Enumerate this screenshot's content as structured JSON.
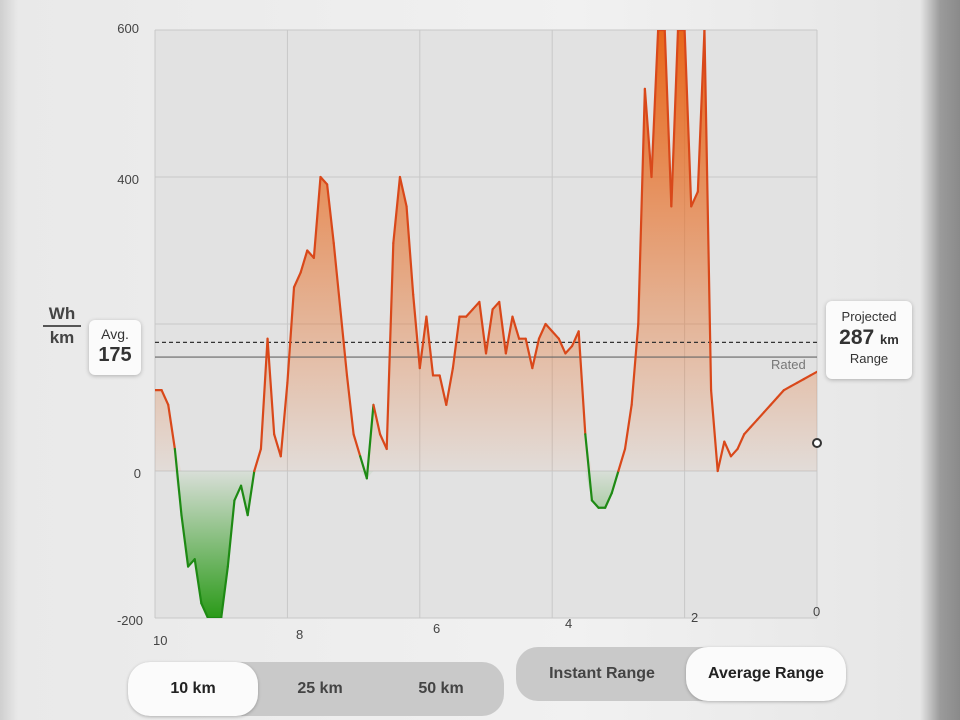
{
  "units": {
    "top": "Wh",
    "bottom": "km"
  },
  "avg": {
    "label": "Avg.",
    "value": "175"
  },
  "projected": {
    "label": "Projected",
    "value": "287",
    "unit": "km",
    "sub": "Range"
  },
  "rated_label": "Rated",
  "range_options": [
    "10 km",
    "25 km",
    "50 km"
  ],
  "selected_range": "10 km",
  "mode_options": [
    "Instant Range",
    "Average Range"
  ],
  "selected_mode": "Average Range",
  "colors": {
    "positive": "#d9481a",
    "positive_fill_top": "#e8741c",
    "negative": "#1e8a14",
    "negative_fill": "#2a9a18",
    "background": "#f1f1f1"
  },
  "chart_data": {
    "type": "area",
    "xlabel": "",
    "ylabel": "Wh/km",
    "xlim": [
      10,
      0
    ],
    "ylim": [
      -200,
      600
    ],
    "y_ticks": [
      600,
      400,
      0,
      -200
    ],
    "x_ticks": [
      10,
      8,
      6,
      4,
      2,
      0
    ],
    "avg_line": 175,
    "rated_line": 155,
    "grid": true,
    "x": [
      10,
      9.9,
      9.8,
      9.7,
      9.6,
      9.5,
      9.4,
      9.3,
      9.2,
      9.1,
      9.0,
      8.9,
      8.8,
      8.7,
      8.6,
      8.5,
      8.4,
      8.3,
      8.2,
      8.1,
      8.0,
      7.9,
      7.8,
      7.7,
      7.6,
      7.5,
      7.4,
      7.3,
      7.2,
      7.1,
      7.0,
      6.9,
      6.8,
      6.7,
      6.6,
      6.5,
      6.4,
      6.3,
      6.2,
      6.1,
      6.0,
      5.9,
      5.8,
      5.7,
      5.6,
      5.5,
      5.4,
      5.3,
      5.2,
      5.1,
      5.0,
      4.9,
      4.8,
      4.7,
      4.6,
      4.5,
      4.4,
      4.3,
      4.2,
      4.1,
      4.0,
      3.9,
      3.8,
      3.7,
      3.6,
      3.5,
      3.4,
      3.3,
      3.2,
      3.1,
      3.0,
      2.9,
      2.8,
      2.7,
      2.6,
      2.5,
      2.4,
      2.3,
      2.2,
      2.1,
      2.0,
      1.9,
      1.8,
      1.7,
      1.6,
      1.5,
      1.4,
      1.3,
      1.2,
      1.1,
      1.0,
      0.9,
      0.8,
      0.7,
      0.6,
      0.5,
      0.4,
      0.3,
      0.2,
      0.1,
      0.0
    ],
    "values": [
      110,
      110,
      90,
      30,
      -60,
      -130,
      -120,
      -180,
      -200,
      -200,
      -200,
      -130,
      -40,
      -20,
      -60,
      0,
      30,
      180,
      50,
      20,
      120,
      250,
      270,
      300,
      290,
      400,
      390,
      310,
      220,
      130,
      50,
      20,
      -10,
      90,
      50,
      30,
      310,
      400,
      360,
      240,
      140,
      210,
      130,
      130,
      90,
      140,
      210,
      210,
      220,
      230,
      160,
      220,
      230,
      160,
      210,
      180,
      180,
      140,
      180,
      200,
      190,
      180,
      160,
      170,
      190,
      50,
      -40,
      -50,
      -50,
      -30,
      0,
      30,
      90,
      200,
      520,
      400,
      600,
      600,
      360,
      600,
      600,
      360,
      380,
      600,
      110,
      0,
      40,
      20,
      30,
      50,
      60,
      70,
      80,
      90,
      100,
      110,
      115,
      120,
      125,
      130,
      135
    ]
  }
}
